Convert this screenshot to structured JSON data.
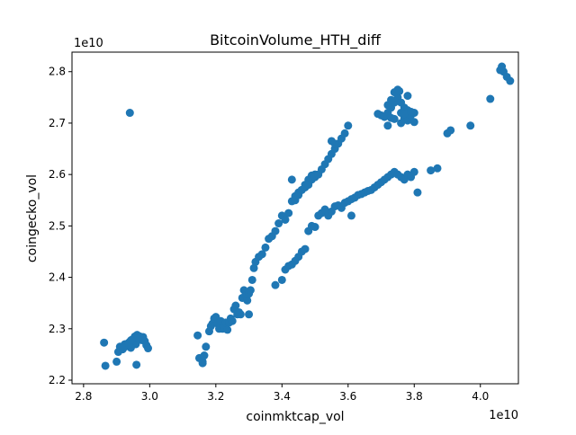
{
  "chart_data": {
    "type": "scatter",
    "title": "BitcoinVolume_HTH_diff",
    "xlabel": "coinmktcap_vol",
    "ylabel": "coingecko_vol",
    "x_offset_label": "1e10",
    "y_offset_label": "1e10",
    "xlim": [
      2.765,
      4.115
    ],
    "ylim": [
      2.193,
      2.838
    ],
    "x_ticks": [
      {
        "value": 2.8,
        "label": "2.8"
      },
      {
        "value": 3.0,
        "label": "3.0"
      },
      {
        "value": 3.2,
        "label": "3.2"
      },
      {
        "value": 3.4,
        "label": "3.4"
      },
      {
        "value": 3.6,
        "label": "3.6"
      },
      {
        "value": 3.8,
        "label": "3.8"
      },
      {
        "value": 4.0,
        "label": "4.0"
      }
    ],
    "y_ticks": [
      {
        "value": 2.2,
        "label": "2.2"
      },
      {
        "value": 2.3,
        "label": "2.3"
      },
      {
        "value": 2.4,
        "label": "2.4"
      },
      {
        "value": 2.5,
        "label": "2.5"
      },
      {
        "value": 2.6,
        "label": "2.6"
      },
      {
        "value": 2.7,
        "label": "2.7"
      },
      {
        "value": 2.8,
        "label": "2.8"
      }
    ],
    "grid": false,
    "marker_color": "#1f77b4",
    "x": [
      2.862,
      2.866,
      2.9,
      2.905,
      2.91,
      2.918,
      2.925,
      2.93,
      2.935,
      2.94,
      2.945,
      2.95,
      2.955,
      2.96,
      2.962,
      2.965,
      2.968,
      2.97,
      2.972,
      2.975,
      2.978,
      2.98,
      2.985,
      2.99,
      2.995,
      2.96,
      2.97,
      2.94,
      2.93,
      2.92,
      2.95,
      2.958,
      2.963,
      2.943,
      2.937,
      2.944,
      3.145,
      3.15,
      3.16,
      3.165,
      3.17,
      3.18,
      3.185,
      3.19,
      3.195,
      3.2,
      3.205,
      3.21,
      3.215,
      3.22,
      3.225,
      3.23,
      3.235,
      3.24,
      3.245,
      3.25,
      3.255,
      3.26,
      3.265,
      3.27,
      3.275,
      3.28,
      3.285,
      3.29,
      3.295,
      3.3,
      3.305,
      3.31,
      3.315,
      3.32,
      3.33,
      3.34,
      3.35,
      3.36,
      3.37,
      3.38,
      3.39,
      3.4,
      3.41,
      3.42,
      3.43,
      3.44,
      3.45,
      3.46,
      3.47,
      3.48,
      3.49,
      3.5,
      3.3,
      3.27,
      3.16,
      3.38,
      3.4,
      3.41,
      3.42,
      3.43,
      3.44,
      3.45,
      3.46,
      3.47,
      3.48,
      3.49,
      3.5,
      3.51,
      3.52,
      3.53,
      3.54,
      3.55,
      3.56,
      3.57,
      3.58,
      3.59,
      3.6,
      3.61,
      3.62,
      3.63,
      3.64,
      3.65,
      3.66,
      3.67,
      3.68,
      3.69,
      3.7,
      3.71,
      3.72,
      3.73,
      3.74,
      3.75,
      3.76,
      3.77,
      3.78,
      3.79,
      3.8,
      3.81,
      3.85,
      3.87,
      3.9,
      3.91,
      3.97,
      4.03,
      4.07,
      4.08,
      4.09,
      4.06,
      4.065,
      3.43,
      3.44,
      3.45,
      3.46,
      3.47,
      3.48,
      3.49,
      3.5,
      3.51,
      3.52,
      3.53,
      3.54,
      3.55,
      3.56,
      3.57,
      3.58,
      3.59,
      3.6,
      3.61,
      3.55,
      3.56,
      3.7,
      3.72,
      3.73,
      3.74,
      3.75,
      3.76,
      3.77,
      3.78,
      3.79,
      3.8,
      3.72,
      3.73,
      3.74,
      3.75,
      3.76,
      3.77,
      3.78,
      3.69,
      3.71,
      3.74,
      3.76,
      3.77,
      3.79,
      3.8,
      3.78,
      3.72,
      3.73,
      3.755
    ],
    "y": [
      2.273,
      2.228,
      2.236,
      2.255,
      2.265,
      2.26,
      2.27,
      2.268,
      2.272,
      2.275,
      2.27,
      2.28,
      2.285,
      2.282,
      2.288,
      2.285,
      2.28,
      2.285,
      2.283,
      2.278,
      2.282,
      2.284,
      2.276,
      2.268,
      2.262,
      2.23,
      2.285,
      2.72,
      2.266,
      2.262,
      2.274,
      2.27,
      2.281,
      2.263,
      2.27,
      2.278,
      2.287,
      2.243,
      2.236,
      2.248,
      2.265,
      2.295,
      2.305,
      2.31,
      2.32,
      2.323,
      2.31,
      2.3,
      2.315,
      2.3,
      2.302,
      2.312,
      2.298,
      2.312,
      2.32,
      2.315,
      2.338,
      2.345,
      2.328,
      2.33,
      2.328,
      2.36,
      2.375,
      2.365,
      2.355,
      2.368,
      2.375,
      2.395,
      2.418,
      2.43,
      2.44,
      2.445,
      2.458,
      2.475,
      2.48,
      2.49,
      2.505,
      2.52,
      2.512,
      2.525,
      2.548,
      2.558,
      2.565,
      2.57,
      2.58,
      2.59,
      2.598,
      2.6,
      2.328,
      2.332,
      2.233,
      2.385,
      2.395,
      2.415,
      2.422,
      2.425,
      2.432,
      2.44,
      2.45,
      2.455,
      2.49,
      2.5,
      2.498,
      2.52,
      2.525,
      2.532,
      2.52,
      2.528,
      2.538,
      2.54,
      2.535,
      2.545,
      2.548,
      2.552,
      2.555,
      2.56,
      2.562,
      2.565,
      2.568,
      2.57,
      2.575,
      2.58,
      2.585,
      2.59,
      2.595,
      2.6,
      2.605,
      2.6,
      2.595,
      2.59,
      2.6,
      2.595,
      2.605,
      2.565,
      2.608,
      2.612,
      2.68,
      2.686,
      2.695,
      2.747,
      2.8,
      2.79,
      2.782,
      2.803,
      2.81,
      2.59,
      2.55,
      2.56,
      2.57,
      2.575,
      2.58,
      2.59,
      2.595,
      2.6,
      2.61,
      2.62,
      2.63,
      2.64,
      2.65,
      2.66,
      2.67,
      2.68,
      2.695,
      2.52,
      2.665,
      2.66,
      2.715,
      2.72,
      2.73,
      2.74,
      2.75,
      2.72,
      2.71,
      2.705,
      2.715,
      2.72,
      2.735,
      2.745,
      2.76,
      2.765,
      2.74,
      2.73,
      2.725,
      2.718,
      2.712,
      2.708,
      2.7,
      2.718,
      2.722,
      2.702,
      2.753,
      2.695,
      2.71,
      2.762
    ]
  }
}
